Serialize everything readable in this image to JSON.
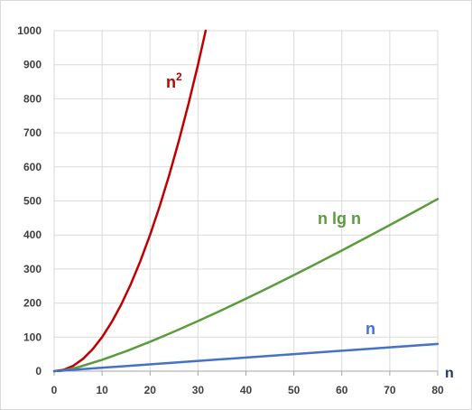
{
  "chart_data": {
    "type": "line",
    "xlabel": "n",
    "ylabel": "",
    "title": "",
    "xlim": [
      0,
      80
    ],
    "ylim": [
      0,
      1000
    ],
    "x_ticks": [
      0,
      10,
      20,
      30,
      40,
      50,
      60,
      70,
      80
    ],
    "y_ticks": [
      0,
      100,
      200,
      300,
      400,
      500,
      600,
      700,
      800,
      900,
      1000
    ],
    "grid": true,
    "series": [
      {
        "name": "n²",
        "label_base": "n",
        "label_sup": "2",
        "color": "#c00000",
        "x": [
          0,
          2,
          4,
          6,
          8,
          10,
          12,
          14,
          16,
          18,
          20,
          22,
          24,
          26,
          28,
          30,
          31.6
        ],
        "y": [
          0,
          4,
          16,
          36,
          64,
          100,
          144,
          196,
          256,
          324,
          400,
          484,
          576,
          676,
          784,
          900,
          1000
        ]
      },
      {
        "name": "n lg n",
        "color": "#5b9b3c",
        "x": [
          1,
          2,
          5,
          10,
          15,
          20,
          25,
          30,
          35,
          40,
          45,
          50,
          55,
          60,
          65,
          70,
          75,
          80
        ],
        "y": [
          0,
          2,
          11.6,
          33.2,
          58.6,
          86.4,
          116.1,
          147.2,
          179.5,
          212.9,
          247.1,
          282.2,
          318.0,
          354.4,
          391.5,
          429.1,
          467.1,
          505.8
        ]
      },
      {
        "name": "n",
        "color": "#4472c4",
        "x": [
          0,
          80
        ],
        "y": [
          0,
          80
        ]
      }
    ]
  }
}
